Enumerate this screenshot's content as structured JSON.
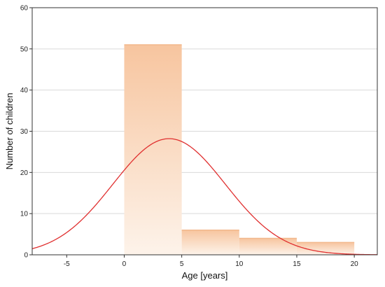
{
  "chart_data": {
    "type": "bar",
    "title": "",
    "xlabel": "Age [years]",
    "ylabel": "Number of children",
    "xlim": [
      -8,
      22
    ],
    "ylim": [
      0,
      60
    ],
    "x_ticks": [
      -5,
      0,
      5,
      10,
      15,
      20
    ],
    "y_ticks": [
      0,
      10,
      20,
      30,
      40,
      50,
      60
    ],
    "grid": "horizontal",
    "legend": "none",
    "bins": [
      {
        "start": 0,
        "end": 5,
        "value": 51
      },
      {
        "start": 5,
        "end": 10,
        "value": 6
      },
      {
        "start": 10,
        "end": 15,
        "value": 4
      },
      {
        "start": 15,
        "end": 20,
        "value": 3
      }
    ],
    "fitted_curve": {
      "type": "normal",
      "mean": 3.9,
      "peak": 28.2,
      "sd": 4.9,
      "color": "#e03030"
    },
    "bar_color_top": "#f7c59f",
    "bar_color_bottom": "#fdf3ea",
    "bar_outline_color": "#f2b88c"
  }
}
